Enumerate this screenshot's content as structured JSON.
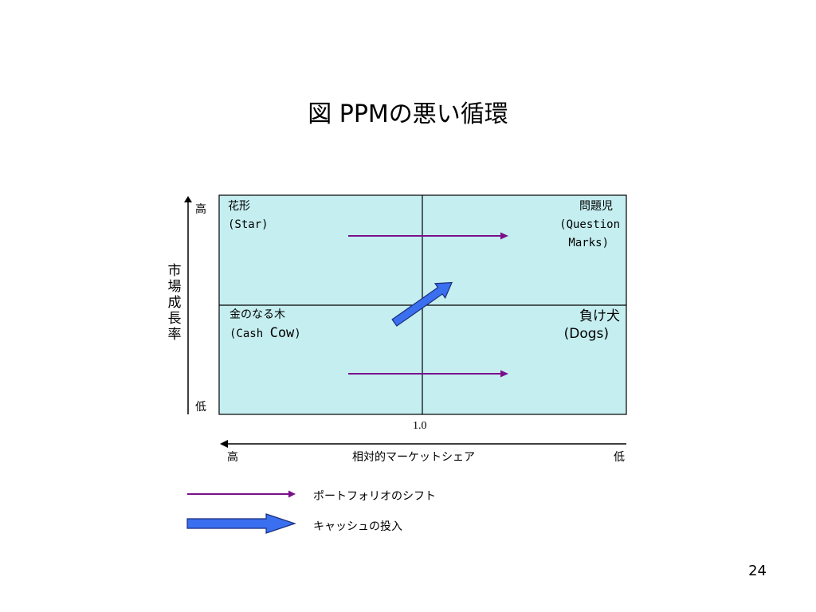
{
  "title": "図 PPMの悪い循環",
  "y_axis": {
    "label_chars": [
      "市",
      "場",
      "成",
      "長",
      "率"
    ],
    "high": "高",
    "low": "低"
  },
  "x_axis": {
    "label": "相対的マーケットシェア",
    "high": "高",
    "low": "低",
    "divider_value": "1.0"
  },
  "quadrants": {
    "star": {
      "name": "花形",
      "en": "(Star)"
    },
    "question_marks": {
      "name": "問題児",
      "en_line1": "(Question",
      "en_line2": "Marks)"
    },
    "cash_cow": {
      "name": "金のなる木",
      "en_prefix": "(Cash ",
      "en_cow": "Cow",
      "en_suffix": ")"
    },
    "dogs": {
      "name": "負け犬",
      "en": "(Dogs)"
    }
  },
  "legend": {
    "portfolio_shift": "ポートフォリオのシフト",
    "cash_investment": "キャッシュの投入"
  },
  "colors": {
    "quadrant_fill": "#c5eef0",
    "shift_arrow": "#7a0f8c",
    "cash_arrow": "#3a6ff0"
  },
  "page_number": "24"
}
